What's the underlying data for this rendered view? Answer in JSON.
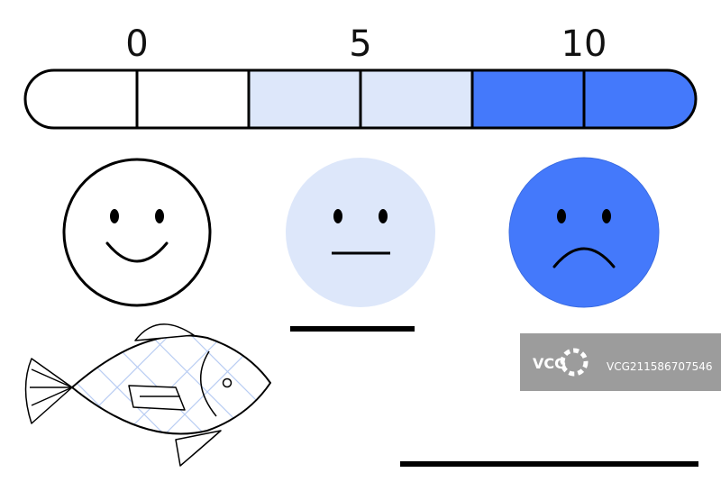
{
  "scale": {
    "labels": [
      "0",
      "5",
      "10"
    ]
  },
  "watermark": {
    "logo": "VCG",
    "id": "VCG211586707546"
  }
}
